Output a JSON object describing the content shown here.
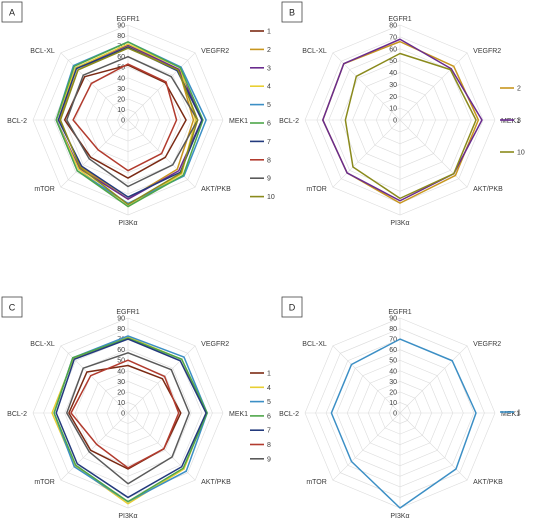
{
  "chart_data": [
    {
      "type": "radar",
      "panel": "A",
      "axes": [
        "EGFR1",
        "VEGFR2",
        "MEK1",
        "AKT/PKB",
        "PI3Kα",
        "mTOR",
        "BCL-2",
        "BCL-XL"
      ],
      "rmax": 90,
      "ticks": [
        "0",
        "10",
        "20",
        "30",
        "40",
        "50",
        "60",
        "70",
        "80",
        "90"
      ],
      "series": [
        {
          "name": "1",
          "color": "#7b2a14",
          "values": [
            52,
            50,
            55,
            50,
            55,
            50,
            60,
            58
          ]
        },
        {
          "name": "2",
          "color": "#c8961e",
          "values": [
            70,
            68,
            62,
            66,
            75,
            63,
            65,
            67
          ]
        },
        {
          "name": "3",
          "color": "#6a2b8e",
          "values": [
            71,
            68,
            70,
            68,
            75,
            65,
            68,
            70
          ]
        },
        {
          "name": "4",
          "color": "#e8cf32",
          "values": [
            72,
            70,
            64,
            72,
            82,
            66,
            68,
            70
          ]
        },
        {
          "name": "5",
          "color": "#3c8fc5",
          "values": [
            74,
            71,
            74,
            75,
            79,
            68,
            68,
            73
          ]
        },
        {
          "name": "6",
          "color": "#4ea64a",
          "values": [
            74,
            70,
            71,
            74,
            82,
            68,
            68,
            72
          ]
        },
        {
          "name": "7",
          "color": "#233a7d",
          "values": [
            69,
            66,
            70,
            70,
            73,
            62,
            66,
            69
          ]
        },
        {
          "name": "8",
          "color": "#b23b2e",
          "values": [
            53,
            51,
            46,
            45,
            48,
            40,
            52,
            49
          ]
        },
        {
          "name": "9",
          "color": "#5a5a5a",
          "values": [
            60,
            58,
            66,
            60,
            63,
            52,
            58,
            60
          ]
        },
        {
          "name": "10",
          "color": "#8a8a1c",
          "values": [
            68,
            67,
            66,
            71,
            80,
            64,
            64,
            67
          ]
        }
      ]
    },
    {
      "type": "radar",
      "panel": "B",
      "axes": [
        "EGFR1",
        "VEGFR2",
        "MEK1",
        "AKT/PKB",
        "PI3Kα",
        "mTOR",
        "BCL-2",
        "BCL-XL"
      ],
      "rmax": 80,
      "ticks": [
        "0",
        "10",
        "20",
        "30",
        "40",
        "50",
        "60",
        "70",
        "80"
      ],
      "series": [
        {
          "name": "2",
          "color": "#c8961e",
          "values": [
            66,
            64,
            66,
            66,
            70,
            63,
            65,
            67
          ]
        },
        {
          "name": "3",
          "color": "#6a2b8e",
          "values": [
            68,
            61,
            69,
            64,
            68,
            63,
            65,
            67
          ]
        },
        {
          "name": "10",
          "color": "#8a8a1c",
          "values": [
            56,
            60,
            64,
            64,
            66,
            56,
            46,
            52
          ]
        }
      ]
    },
    {
      "type": "radar",
      "panel": "C",
      "axes": [
        "EGFR1",
        "VEGFR2",
        "MEK1",
        "AKT/PKB",
        "PI3Kα",
        "mTOR",
        "BCL-2",
        "BCL-XL"
      ],
      "rmax": 90,
      "ticks": [
        "0",
        "10",
        "20",
        "30",
        "40",
        "50",
        "60",
        "70",
        "80",
        "90"
      ],
      "series": [
        {
          "name": "1",
          "color": "#7b2a14",
          "values": [
            45,
            46,
            50,
            48,
            53,
            50,
            56,
            55
          ]
        },
        {
          "name": "4",
          "color": "#e8cf32",
          "values": [
            72,
            72,
            74,
            75,
            86,
            71,
            72,
            73
          ]
        },
        {
          "name": "5",
          "color": "#3c8fc5",
          "values": [
            73,
            75,
            75,
            78,
            84,
            72,
            70,
            74
          ]
        },
        {
          "name": "6",
          "color": "#4ea64a",
          "values": [
            71,
            72,
            75,
            74,
            84,
            70,
            70,
            74
          ]
        },
        {
          "name": "7",
          "color": "#233a7d",
          "values": [
            70,
            70,
            74,
            72,
            80,
            68,
            68,
            72
          ]
        },
        {
          "name": "8",
          "color": "#b23b2e",
          "values": [
            50,
            49,
            48,
            48,
            52,
            42,
            54,
            50
          ]
        },
        {
          "name": "9",
          "color": "#5a5a5a",
          "values": [
            57,
            58,
            58,
            59,
            67,
            52,
            58,
            60
          ]
        }
      ]
    },
    {
      "type": "radar",
      "panel": "D",
      "axes": [
        "EGFR1",
        "VEGFR2",
        "MEK1",
        "AKT/PKB",
        "PI3Kα",
        "mTOR",
        "BCL-2",
        "BCL-XL"
      ],
      "rmax": 90,
      "ticks": [
        "0",
        "10",
        "20",
        "30",
        "40",
        "50",
        "60",
        "70",
        "80",
        "90"
      ],
      "series": [
        {
          "name": "1",
          "color": "#3c8fc5",
          "values": [
            70,
            70,
            72,
            75,
            90,
            65,
            65,
            65
          ]
        }
      ]
    }
  ]
}
